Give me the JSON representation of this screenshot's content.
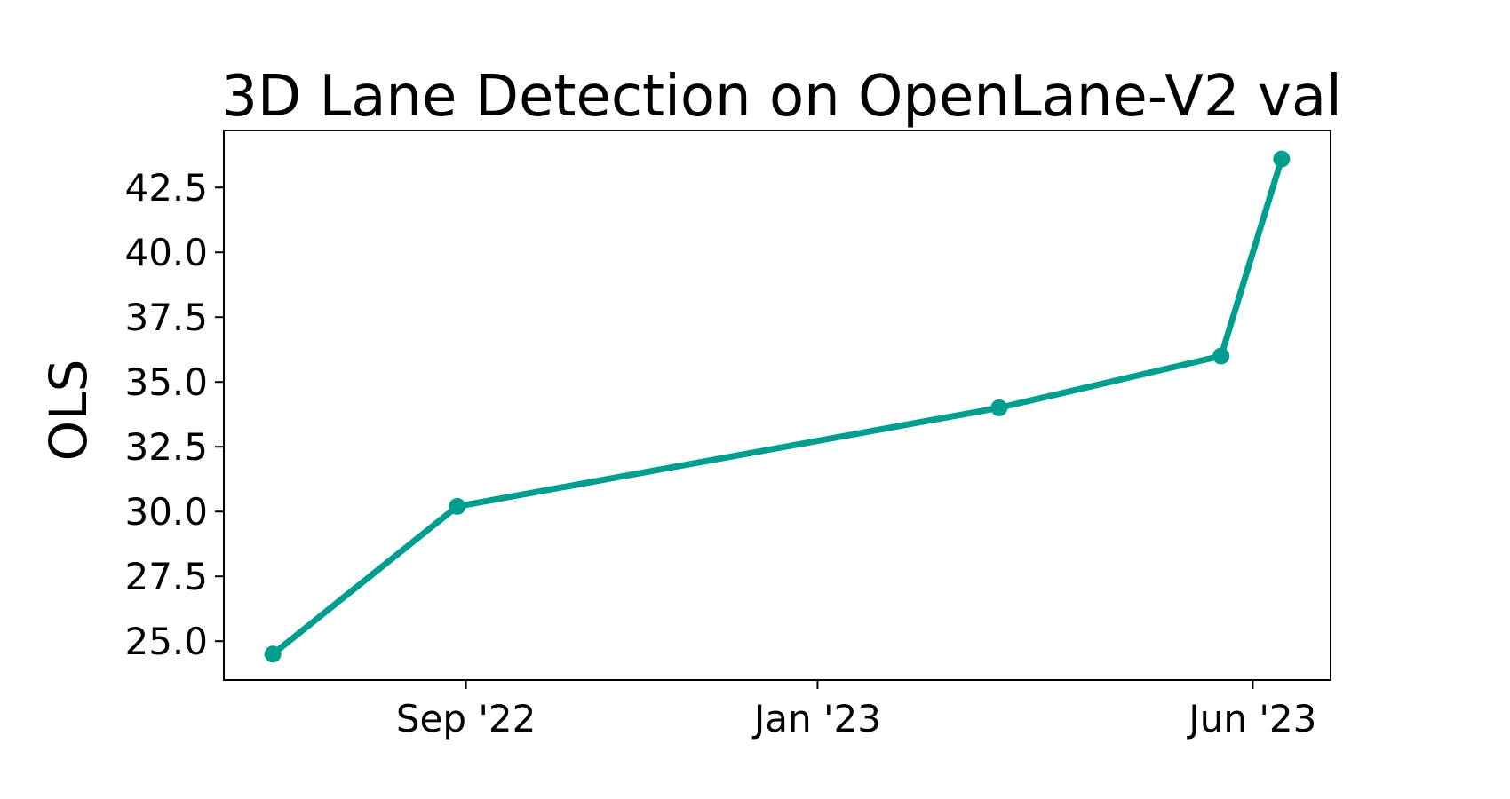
{
  "chart_data": {
    "type": "line",
    "title": "3D Lane Detection on OpenLane-V2 val",
    "xlabel": "",
    "ylabel": "OLS",
    "x_axis": {
      "kind": "date",
      "range": [
        "2022-06-09",
        "2023-06-28"
      ],
      "ticks": [
        {
          "date": "2022-09-01",
          "label": "Sep '22"
        },
        {
          "date": "2023-01-01",
          "label": "Jan '23"
        },
        {
          "date": "2023-06-01",
          "label": "Jun '23"
        }
      ]
    },
    "y_axis": {
      "range": [
        23.5,
        44.7
      ],
      "ticks": [
        25.0,
        27.5,
        30.0,
        32.5,
        35.0,
        37.5,
        40.0,
        42.5
      ]
    },
    "grid": false,
    "color": "#009e8f",
    "series": [
      {
        "name": "",
        "points": [
          {
            "x": "2022-06-26",
            "y": 24.5
          },
          {
            "x": "2022-08-29",
            "y": 30.2
          },
          {
            "x": "2023-03-05",
            "y": 34.0
          },
          {
            "x": "2023-05-21",
            "y": 36.0
          },
          {
            "x": "2023-06-11",
            "y": 43.6
          }
        ]
      }
    ]
  }
}
